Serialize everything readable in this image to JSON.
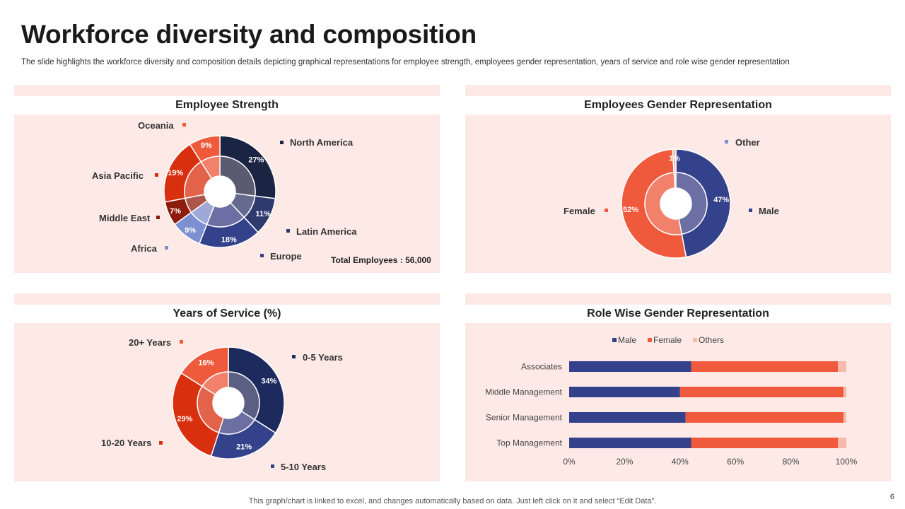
{
  "page": {
    "title": "Workforce diversity and composition",
    "subtitle": "The slide highlights the workforce diversity and composition details depicting graphical representations for employee strength, employees gender representation, years of service and role wise gender representation",
    "footer": "This graph/chart is linked to excel,  and changes automatically based on data. Just left click on it and select “Edit Data”.",
    "page_number": "6"
  },
  "total_employees": "Total Employees : 56,000",
  "colors": {
    "panel_bg": "#fdeae6",
    "navy": "#1c2444",
    "dark_blue": "#2e3a6e",
    "blue": "#34418b",
    "light_blue": "#7b8fd1",
    "dark_red": "#8e1c0c",
    "red": "#d8300f",
    "orange_red": "#ef5a3c",
    "pink": "#f7b9aa"
  },
  "chart_data": [
    {
      "type": "pie",
      "title": "Employee Strength",
      "slices": [
        {
          "label": "North America",
          "value": 27,
          "display": "27%",
          "color": "#1c2444"
        },
        {
          "label": "Latin America",
          "value": 11,
          "display": "11%",
          "color": "#2e3a6e"
        },
        {
          "label": "Europe",
          "value": 18,
          "display": "18%",
          "color": "#34418b"
        },
        {
          "label": "Africa",
          "value": 9,
          "display": "9%",
          "color": "#7b8fd1"
        },
        {
          "label": "Middle East",
          "value": 7,
          "display": "7%",
          "color": "#8e1c0c"
        },
        {
          "label": "Asia Pacific",
          "value": 19,
          "display": "19%",
          "color": "#d8300f"
        },
        {
          "label": "Oceania",
          "value": 9,
          "display": "9%",
          "color": "#ef5a3c"
        }
      ]
    },
    {
      "type": "pie",
      "title": "Employees Gender Representation",
      "slices": [
        {
          "label": "Male",
          "value": 47,
          "display": "47%",
          "color": "#34418b"
        },
        {
          "label": "Female",
          "value": 52,
          "display": "52%",
          "color": "#ef5a3c"
        },
        {
          "label": "Other",
          "value": 1,
          "display": "1%",
          "color": "#f7b9aa"
        }
      ]
    },
    {
      "type": "pie",
      "title": "Years of Service (%)",
      "slices": [
        {
          "label": "0-5 Years",
          "value": 34,
          "display": "34%",
          "color": "#1c2a5e"
        },
        {
          "label": "5-10 Years",
          "value": 21,
          "display": "21%",
          "color": "#34418b"
        },
        {
          "label": "10-20 Years",
          "value": 29,
          "display": "29%",
          "color": "#d8300f"
        },
        {
          "label": "20+ Years",
          "value": 16,
          "display": "16%",
          "color": "#ef5a3c"
        }
      ]
    },
    {
      "type": "bar",
      "orientation": "horizontal",
      "stacked": true,
      "title": "Role Wise Gender Representation",
      "categories": [
        "Associates",
        "Middle Management",
        "Senior Management",
        "Top Management"
      ],
      "series": [
        {
          "name": "Male",
          "values": [
            44,
            40,
            42,
            44
          ],
          "color": "#34418b"
        },
        {
          "name": "Female",
          "values": [
            53,
            59,
            57,
            53
          ],
          "color": "#ef5a3c"
        },
        {
          "name": "Others",
          "values": [
            3,
            1,
            1,
            3
          ],
          "color": "#f7b9aa"
        }
      ],
      "xlim": [
        0,
        100
      ],
      "xticks": [
        "0%",
        "20%",
        "40%",
        "60%",
        "80%",
        "100%"
      ],
      "legend": "top"
    }
  ]
}
